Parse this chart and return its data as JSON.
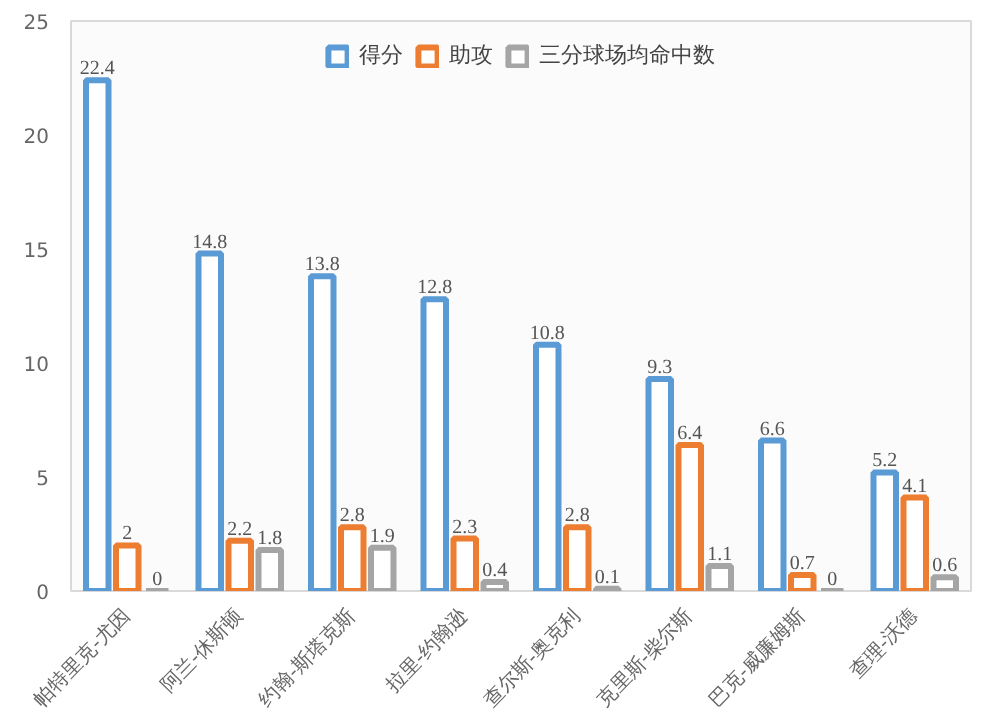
{
  "chart_data": {
    "type": "bar",
    "categories": [
      "帕特里克-尤因",
      "阿兰-休斯顿",
      "约翰-斯塔克斯",
      "拉里-约翰逊",
      "查尔斯-奥克利",
      "克里斯-柴尔斯",
      "巴克-威廉姆斯",
      "查理-沃德"
    ],
    "series": [
      {
        "name": "得分",
        "color": "#5b9bd5",
        "values": [
          22.4,
          14.8,
          13.8,
          12.8,
          10.8,
          9.3,
          6.6,
          5.2
        ]
      },
      {
        "name": "助攻",
        "color": "#ed7d31",
        "values": [
          2,
          2.2,
          2.8,
          2.3,
          2.8,
          6.4,
          0.7,
          4.1
        ]
      },
      {
        "name": "三分球场均命中数",
        "color": "#a5a5a5",
        "values": [
          0,
          1.8,
          1.9,
          0.4,
          0.1,
          1.1,
          0,
          0.6
        ]
      }
    ],
    "ylim": [
      0,
      25
    ],
    "yticks": [
      0,
      5,
      10,
      15,
      20,
      25
    ],
    "grid": false,
    "legend": "top",
    "data_labels": true
  }
}
